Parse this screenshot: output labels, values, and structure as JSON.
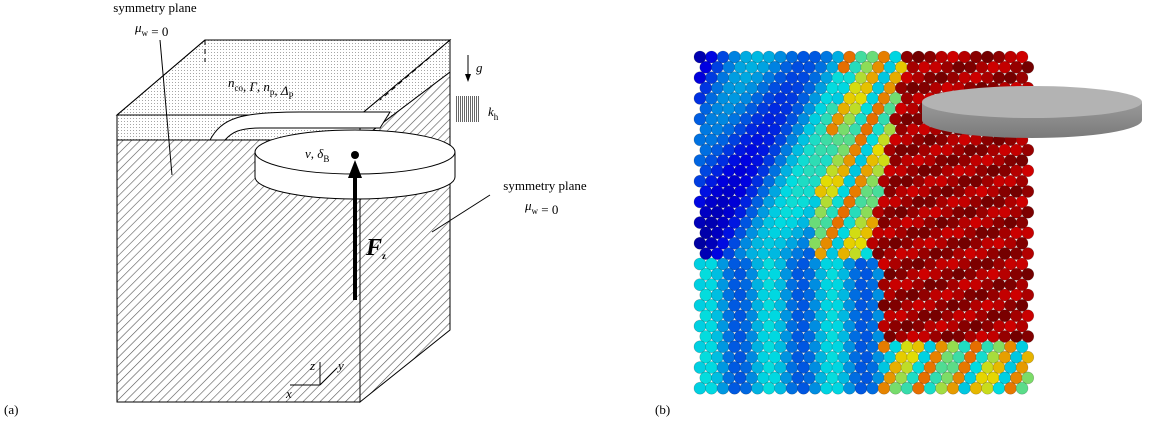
{
  "panel_a": {
    "label": "(a)",
    "left_plane": {
      "title": "symmetry plane",
      "symbol": "μ",
      "subscript": "w",
      "relation": " = 0"
    },
    "right_plane": {
      "title": "symmetry plane",
      "symbol": "μ",
      "subscript": "w",
      "relation": " = 0"
    },
    "separator": ", ",
    "top_params": [
      {
        "symbol": "n",
        "subscript": "co"
      },
      {
        "symbol": "Γ"
      },
      {
        "symbol": "n",
        "subscript": "p"
      },
      {
        "symbol": "Δ",
        "subscript": "P"
      }
    ],
    "gravity": {
      "symbol": "g"
    },
    "stiffness": {
      "symbol": "k",
      "subscript": "h"
    },
    "blade": [
      {
        "symbol": "v"
      },
      {
        "symbol": "δ",
        "subscript": "B"
      }
    ],
    "force": {
      "symbol": "F",
      "subscript": "z"
    },
    "axes": {
      "z": "z",
      "y": "y",
      "x": "x"
    }
  },
  "panel_b": {
    "label": "(b)"
  }
}
